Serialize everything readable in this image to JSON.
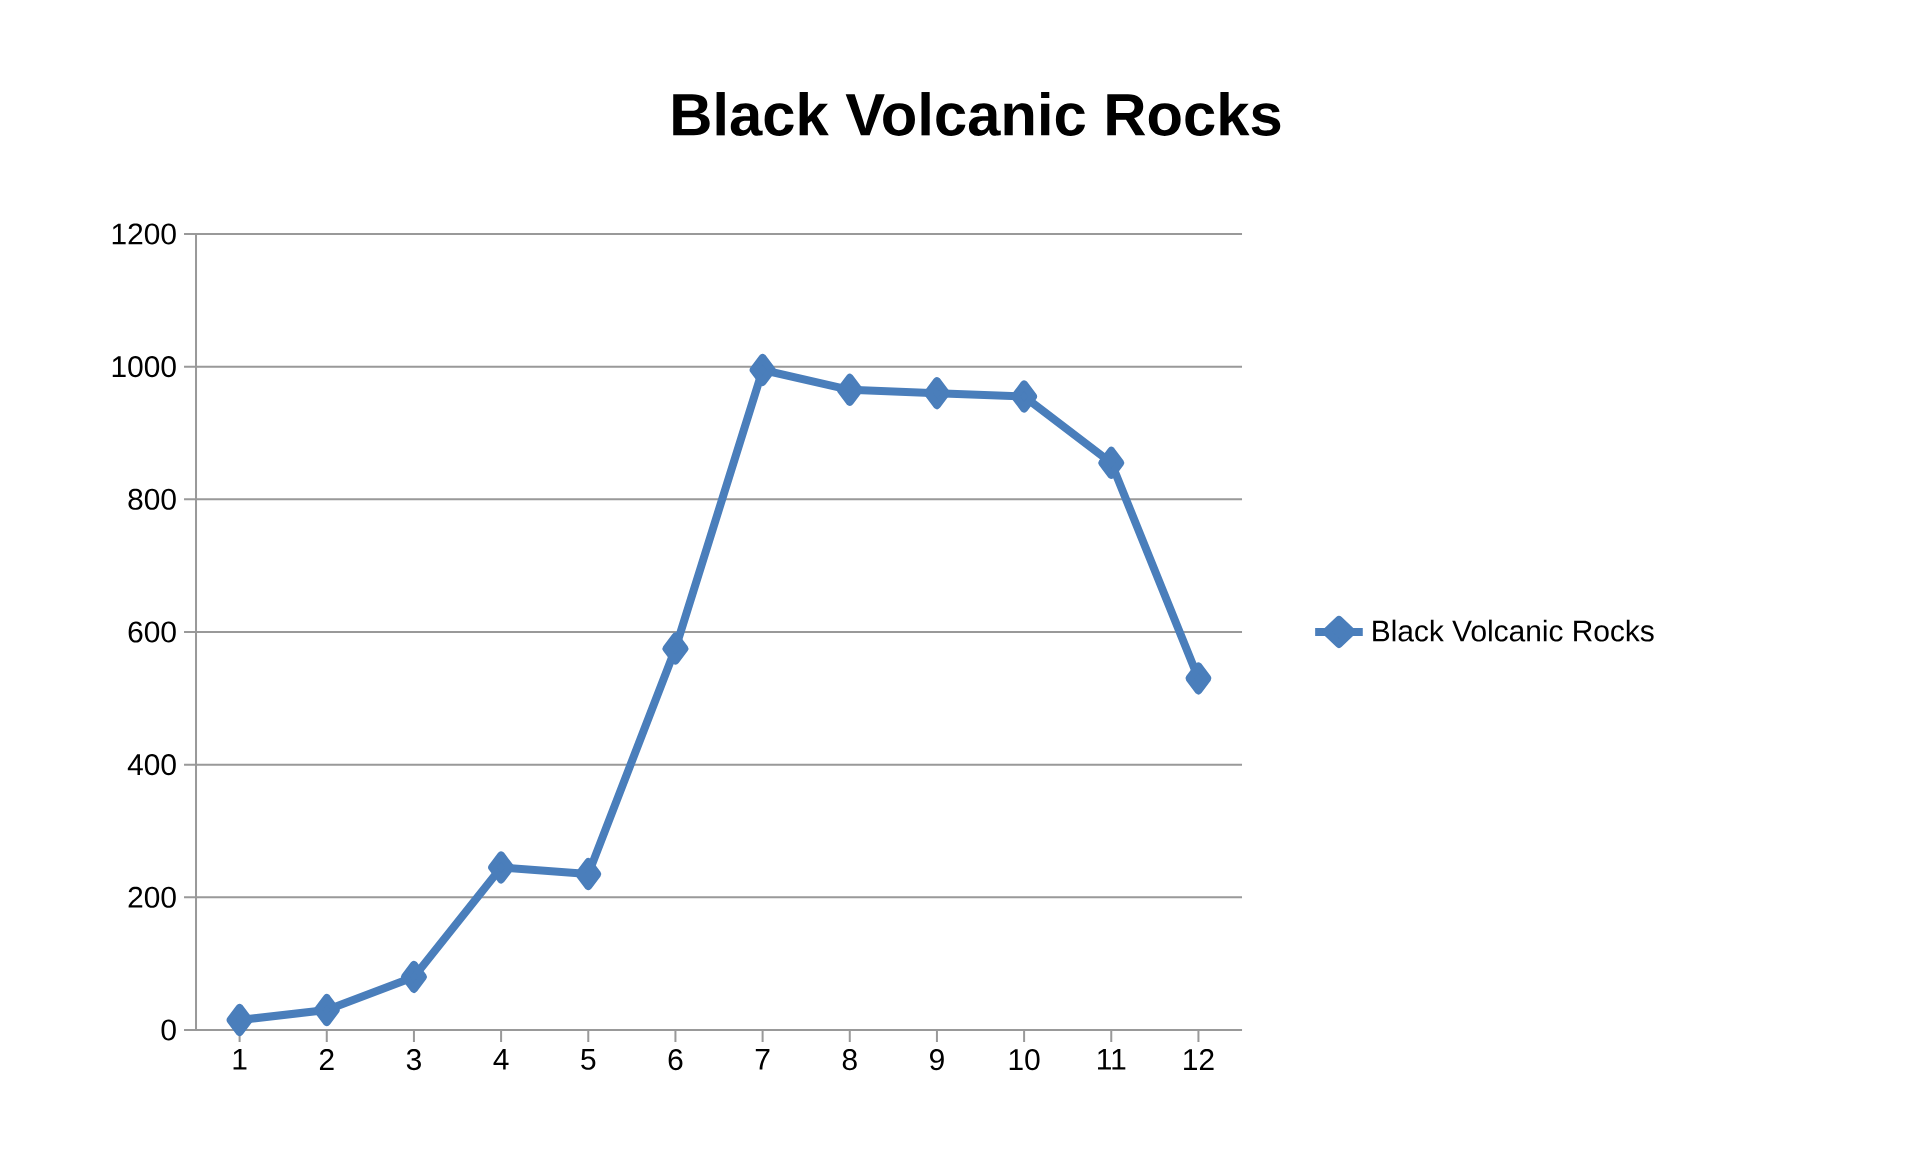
{
  "chart_data": {
    "type": "line",
    "title": "Black Volcanic Rocks",
    "categories": [
      "1",
      "2",
      "3",
      "4",
      "5",
      "6",
      "7",
      "8",
      "9",
      "10",
      "11",
      "12"
    ],
    "series": [
      {
        "name": "Black Volcanic Rocks",
        "color": "#4a7ebb",
        "values": [
          15,
          30,
          80,
          245,
          235,
          575,
          995,
          965,
          960,
          955,
          855,
          530
        ]
      }
    ],
    "ylim": [
      0,
      1200
    ],
    "yticks": [
      0,
      200,
      400,
      600,
      800,
      1000,
      1200
    ],
    "grid": "y",
    "legend": "right",
    "marker": "diamond",
    "line_style": "solid"
  }
}
